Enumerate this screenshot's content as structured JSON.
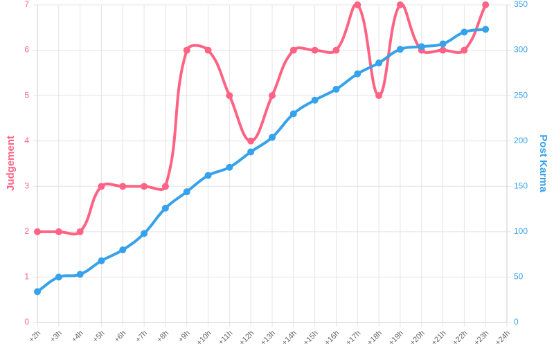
{
  "chart_data": {
    "type": "line",
    "categories": [
      "+2h",
      "+3h",
      "+4h",
      "+5h",
      "+6h",
      "+7h",
      "+8h",
      "+9h",
      "+10h",
      "+11h",
      "+12h",
      "+13h",
      "+14h",
      "+15h",
      "+16h",
      "+17h",
      "+18h",
      "+19h",
      "+20h",
      "+21h",
      "+22h",
      "+23h",
      "+24h"
    ],
    "series": [
      {
        "name": "Judgement",
        "color": "#ff6384",
        "axis": "y",
        "values": [
          2,
          2,
          2,
          3,
          3,
          3,
          3,
          6,
          6,
          5,
          4,
          5,
          6,
          6,
          6,
          7,
          5,
          7,
          6,
          6,
          6,
          7,
          null
        ]
      },
      {
        "name": "Post Karma",
        "color": "#36a2eb",
        "axis": "y2",
        "values": [
          34,
          50,
          53,
          68,
          80,
          98,
          126,
          144,
          162,
          171,
          188,
          204,
          230,
          245,
          257,
          274,
          286,
          301,
          304,
          307,
          320,
          323,
          null
        ]
      }
    ],
    "y_label": "Judgement",
    "y2_label": "Post Karma",
    "ylim": [
      0,
      7
    ],
    "yticks": [
      0,
      1,
      2,
      3,
      4,
      5,
      6,
      7
    ],
    "y2lim": [
      0,
      350
    ],
    "y2ticks": [
      0,
      50,
      100,
      150,
      200,
      250,
      300,
      350
    ],
    "grid": true
  }
}
